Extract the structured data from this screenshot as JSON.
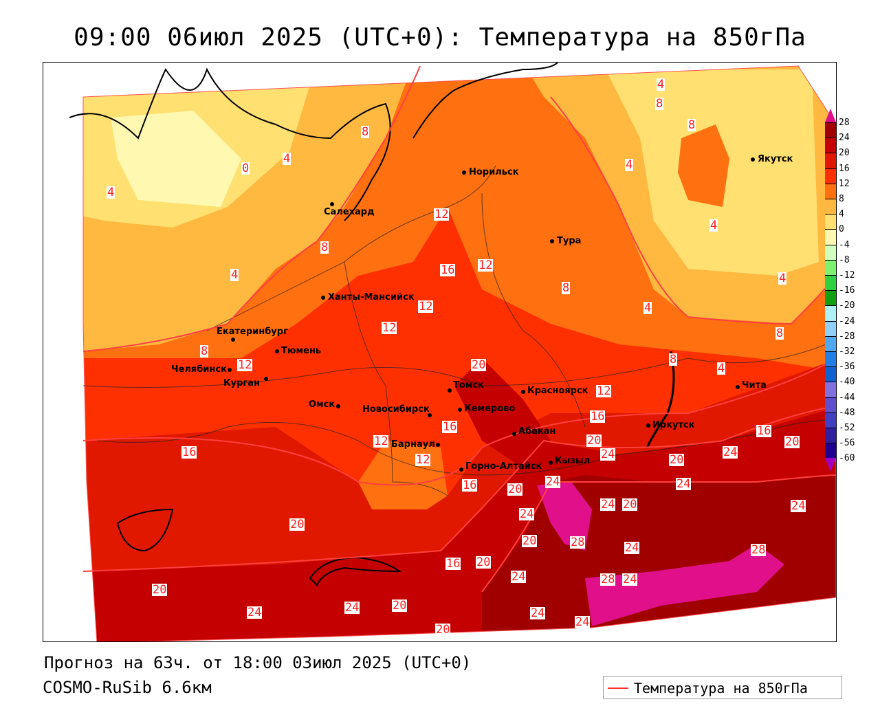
{
  "title": "09:00 06июл 2025 (UTC+0): Температура на 850гПа",
  "footer": {
    "forecast": "Прогноз на 63ч. от 18:00 03июл 2025 (UTC+0)",
    "model": "COSMO-RuSib 6.6км",
    "legend_label": "Температура на 850гПа",
    "legend_color": "#ff3030"
  },
  "colorbar": {
    "ticks": [
      "28",
      "24",
      "20",
      "16",
      "12",
      "8",
      "4",
      "0",
      "-4",
      "-8",
      "-12",
      "-16",
      "-20",
      "-24",
      "-28",
      "-32",
      "-36",
      "-40",
      "-44",
      "-48",
      "-52",
      "-56",
      "-60"
    ],
    "colors": [
      "#a00000",
      "#c40000",
      "#e01800",
      "#ff3000",
      "#ff7010",
      "#ffb840",
      "#ffe070",
      "#fff8b0",
      "#d0ffc0",
      "#80f070",
      "#30d040",
      "#10a010",
      "#b0f0f8",
      "#90d0f8",
      "#50a8f0",
      "#2080e8",
      "#1060d0",
      "#8070e0",
      "#6050d0",
      "#4040c0",
      "#3020a0",
      "#200090"
    ],
    "over_color": "#e0108a",
    "under_color": "#a000c0"
  },
  "cities": [
    "Норильск",
    "Якутск",
    "Салехард",
    "Тура",
    "Ханты-Мансийск",
    "Екатеринбург",
    "Тюмень",
    "Челябинск",
    "Курган",
    "Омск",
    "Новосибирск",
    "Томск",
    "Кемерово",
    "Красноярск",
    "Абакан",
    "Иркутск",
    "Чита",
    "Барнаул",
    "Горно-Алтайск",
    "Кызыл"
  ],
  "contour_labels": [
    "4",
    "8",
    "0",
    "4",
    "4",
    "8",
    "12",
    "16",
    "12",
    "8",
    "4",
    "4",
    "8",
    "4",
    "4",
    "8",
    "4",
    "8",
    "12",
    "12",
    "12",
    "8",
    "12",
    "20",
    "16",
    "12",
    "16",
    "12",
    "16",
    "20",
    "24",
    "20",
    "24",
    "16",
    "20",
    "24",
    "24",
    "24",
    "20",
    "24",
    "20",
    "28",
    "24",
    "28",
    "24",
    "28",
    "16",
    "20",
    "24",
    "20",
    "24",
    "24",
    "20",
    "16",
    "20",
    "24",
    "20",
    "24",
    "8",
    "4",
    "20",
    "24"
  ]
}
